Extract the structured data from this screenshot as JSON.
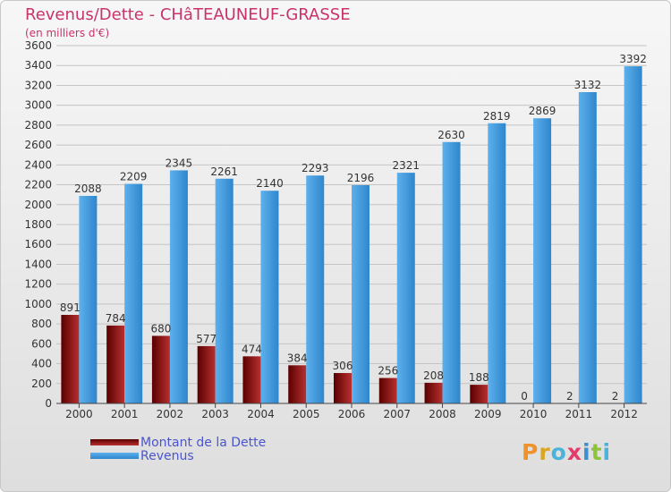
{
  "header": {
    "title": "Revenus/Dette - CHâTEAUNEUF-GRASSE",
    "subtitle": "(en milliers d'€)"
  },
  "colors": {
    "title": "#c8336b",
    "debt_dark": "#5a0000",
    "debt_light": "#b83030",
    "revenue_dark": "#2f86cc",
    "revenue_light": "#5db0ec",
    "legend_text": "#4a55cc"
  },
  "legend": {
    "items": [
      {
        "label": "Montant de la Dette"
      },
      {
        "label": "Revenus"
      }
    ]
  },
  "logo": {
    "letters": [
      "P",
      "r",
      "o",
      "x",
      "i",
      "t",
      "i"
    ],
    "colors": [
      "#f0922a",
      "#d9a720",
      "#4bb3d9",
      "#e23b6c",
      "#3d8fd0",
      "#8fc23b",
      "#4bb3d9"
    ]
  },
  "chart_data": {
    "type": "bar",
    "title": "Revenus/Dette - CHâTEAUNEUF-GRASSE",
    "ylabel": "(en milliers d'€)",
    "xlabel": "",
    "categories": [
      "2000",
      "2001",
      "2002",
      "2003",
      "2004",
      "2005",
      "2006",
      "2007",
      "2008",
      "2009",
      "2010",
      "2011",
      "2012"
    ],
    "series": [
      {
        "name": "Montant de la Dette",
        "values": [
          891,
          784,
          680,
          577,
          474,
          384,
          306,
          256,
          208,
          188,
          0,
          2,
          2
        ]
      },
      {
        "name": "Revenus",
        "values": [
          2088,
          2209,
          2345,
          2261,
          2140,
          2293,
          2196,
          2321,
          2630,
          2819,
          2869,
          3132,
          3392
        ]
      }
    ],
    "ylim": [
      0,
      3600
    ],
    "yticks": [
      0,
      200,
      400,
      600,
      800,
      1000,
      1200,
      1400,
      1600,
      1800,
      2000,
      2200,
      2400,
      2600,
      2800,
      3000,
      3200,
      3400,
      3600
    ],
    "grid": true,
    "legend_position": "bottom-left"
  }
}
